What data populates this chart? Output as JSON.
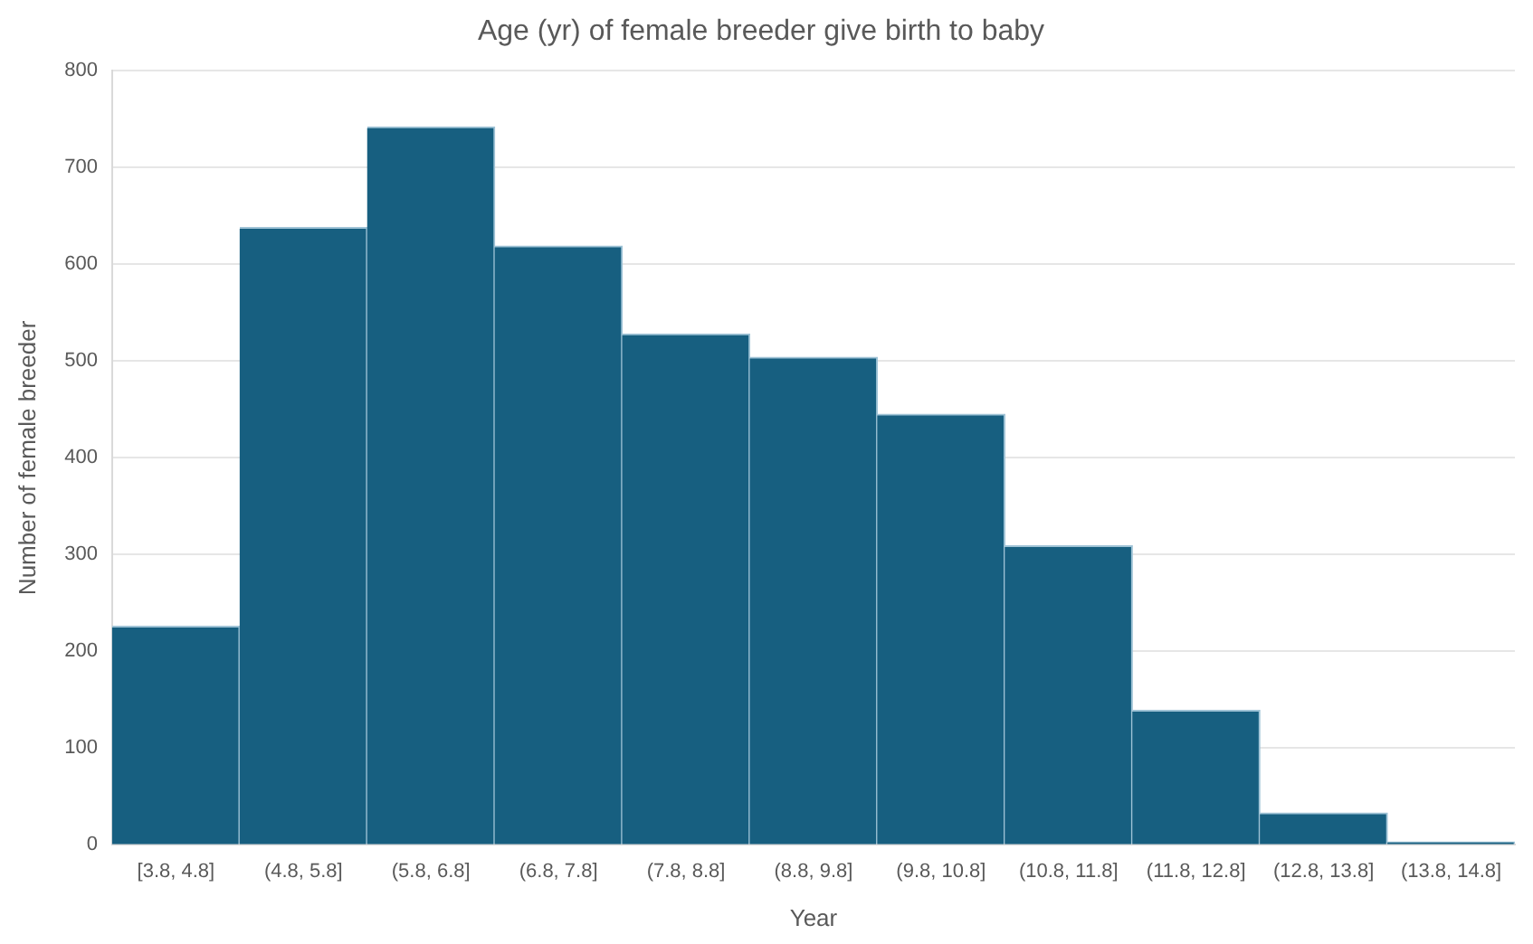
{
  "chart_data": {
    "type": "bar",
    "title": "Age (yr) of female breeder give birth to baby",
    "xlabel": "Year",
    "ylabel": "Number of female breeder",
    "categories": [
      "[3.8, 4.8]",
      "(4.8, 5.8]",
      "(5.8, 6.8]",
      "(6.8, 7.8]",
      "(7.8, 8.8]",
      "(8.8, 9.8]",
      "(9.8, 10.8]",
      "(10.8, 11.8]",
      "(11.8, 12.8]",
      "(12.8, 13.8]",
      "(13.8, 14.8]"
    ],
    "values": [
      226,
      638,
      742,
      619,
      528,
      504,
      445,
      309,
      139,
      33,
      3
    ],
    "color": "#175f80",
    "ylim": [
      0,
      800
    ],
    "yticks": [
      0,
      100,
      200,
      300,
      400,
      500,
      600,
      700,
      800
    ],
    "grid": "y"
  }
}
